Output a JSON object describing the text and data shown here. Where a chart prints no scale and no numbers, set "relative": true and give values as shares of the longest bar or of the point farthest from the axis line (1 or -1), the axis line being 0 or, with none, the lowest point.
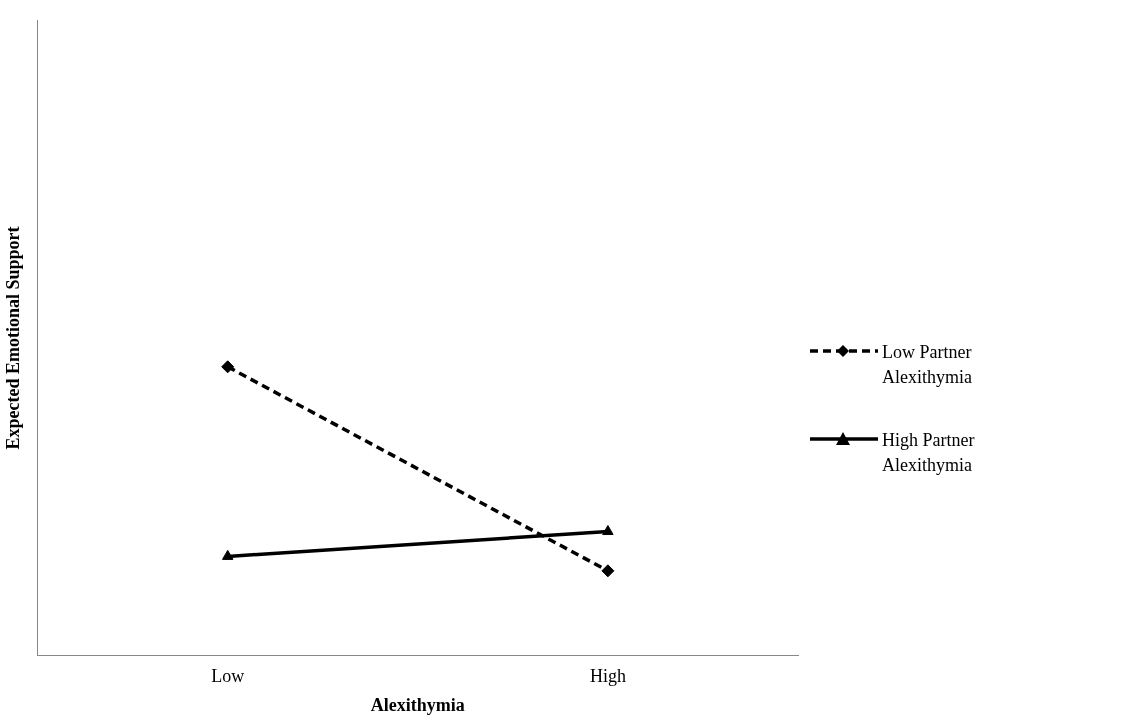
{
  "chart_data": {
    "type": "line",
    "xlabel": "Alexithymia",
    "ylabel": "Expected Emotional Support",
    "categories": [
      "Low",
      "High"
    ],
    "relative": true,
    "series": [
      {
        "name": "Low Partner Alexithymia",
        "color": "#000000",
        "values": [
          1,
          0.294
        ],
        "marker": "diamond",
        "line_style": "dashed"
      },
      {
        "name": "High Partner Alexithymia",
        "color": "#000000",
        "values": [
          0.344,
          0.43
        ],
        "marker": "triangle",
        "line_style": "solid"
      }
    ],
    "legend": "right",
    "grid": false
  }
}
